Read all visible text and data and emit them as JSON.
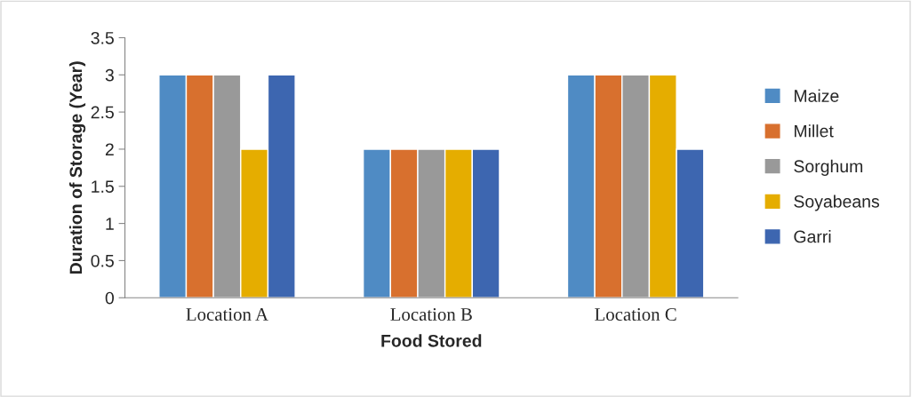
{
  "chart_data": {
    "type": "bar",
    "xlabel": "Food Stored",
    "ylabel": "Duration of Storage (Year)",
    "categories": [
      "Location A",
      "Location B",
      "Location C"
    ],
    "series": [
      {
        "name": "Maize",
        "color": "#4f8bc4",
        "values": [
          3,
          2,
          3
        ]
      },
      {
        "name": "Millet",
        "color": "#d8702e",
        "values": [
          3,
          2,
          3
        ]
      },
      {
        "name": "Sorghum",
        "color": "#999999",
        "values": [
          3,
          2,
          3
        ]
      },
      {
        "name": "Soyabeans",
        "color": "#e5ad00",
        "values": [
          2,
          2,
          3
        ]
      },
      {
        "name": "Garri",
        "color": "#3d66b0",
        "values": [
          3,
          2,
          2
        ]
      }
    ],
    "ylim": [
      0,
      3.5
    ],
    "yticks": [
      0,
      0.5,
      1,
      1.5,
      2,
      2.5,
      3,
      3.5
    ],
    "grid": false,
    "legend": "right"
  }
}
